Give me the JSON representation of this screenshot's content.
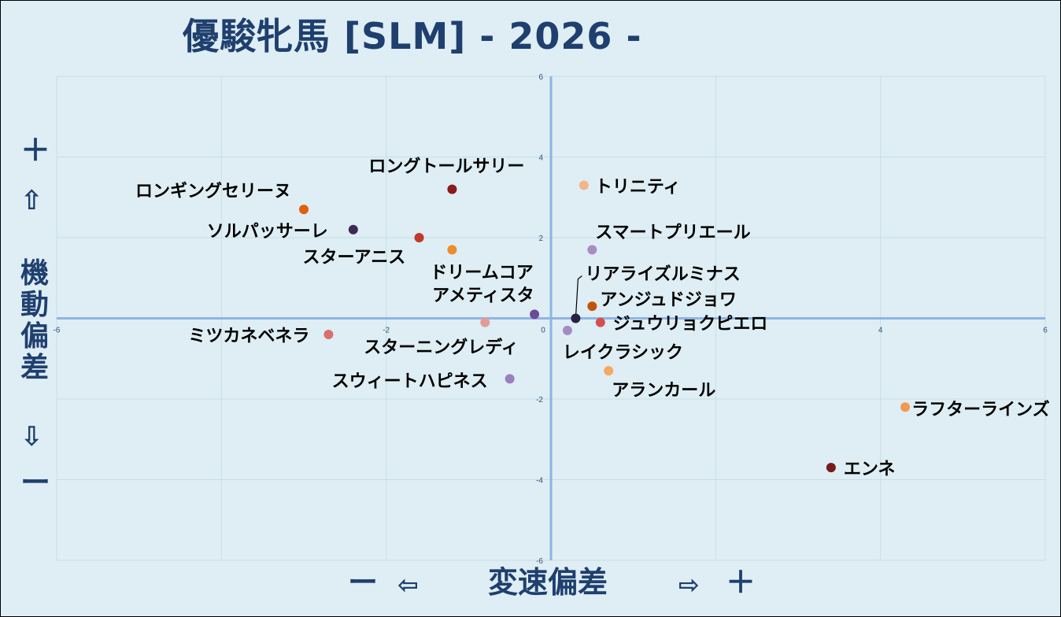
{
  "title": "優駿牝馬 [SLM]  - 2026 -",
  "y_axis": {
    "plus": "＋",
    "up_arrow": "⇧",
    "label": "機動偏差",
    "down_arrow": "⇩",
    "minus": "ー"
  },
  "x_axis": {
    "minus": "ー",
    "left_arrow": "⇦",
    "label": "変速偏差",
    "right_arrow": "⇨",
    "plus": "＋"
  },
  "chart_data": {
    "type": "scatter",
    "title": "優駿牝馬 [SLM]  - 2026 -",
    "xlabel": "変速偏差",
    "ylabel": "機動偏差",
    "xlim": [
      -6,
      6
    ],
    "ylim": [
      -6,
      6
    ],
    "xticks": [
      "-6",
      "-2",
      "0",
      "4",
      "6"
    ],
    "yticks": [
      "6",
      "4",
      "2",
      "0",
      "-2",
      "-4",
      "-6"
    ],
    "grid": true,
    "points": [
      {
        "name": "ロングトールサリー",
        "x": -1.2,
        "y": 3.2,
        "color": "#8b1a1a"
      },
      {
        "name": "ロンギングセリーヌ",
        "x": -3.0,
        "y": 2.7,
        "color": "#e0600f"
      },
      {
        "name": "トリニティ",
        "x": 0.4,
        "y": 3.3,
        "color": "#f4b48c"
      },
      {
        "name": "ソルパッサーレ",
        "x": -2.4,
        "y": 2.2,
        "color": "#3c2a56"
      },
      {
        "name": "スターアニス",
        "x": -1.6,
        "y": 2.0,
        "color": "#c0392b"
      },
      {
        "name": "ドリームコア",
        "x": -1.2,
        "y": 1.7,
        "color": "#ee8c2a"
      },
      {
        "name": "スマートプリエール",
        "x": 0.5,
        "y": 1.7,
        "color": "#a98cc4"
      },
      {
        "name": "リアライズルミナス",
        "x": 0.3,
        "y": 0.0,
        "color": "#2b1f48"
      },
      {
        "name": "アンジュドジョワ",
        "x": 0.5,
        "y": 0.3,
        "color": "#c0550a"
      },
      {
        "name": "アメティスタ",
        "x": -0.2,
        "y": 0.1,
        "color": "#6c4a96"
      },
      {
        "name": "ミツカネベネラ",
        "x": -2.7,
        "y": -0.4,
        "color": "#d97070"
      },
      {
        "name": "スターニングレディ",
        "x": -0.8,
        "y": -0.1,
        "color": "#e59a9a"
      },
      {
        "name": "ジュウリョクピエロ",
        "x": 0.6,
        "y": -0.1,
        "color": "#d45050"
      },
      {
        "name": "レイクラシック",
        "x": 0.2,
        "y": -0.3,
        "color": "#a58bc4"
      },
      {
        "name": "アランカール",
        "x": 0.7,
        "y": -1.3,
        "color": "#f4a860"
      },
      {
        "name": "スウィートハピネス",
        "x": -0.5,
        "y": -1.5,
        "color": "#9a7fbf"
      },
      {
        "name": "ラフターラインズ",
        "x": 4.3,
        "y": -2.2,
        "color": "#f09a50"
      },
      {
        "name": "エンネ",
        "x": 3.4,
        "y": -3.7,
        "color": "#7a1a1a"
      }
    ]
  }
}
